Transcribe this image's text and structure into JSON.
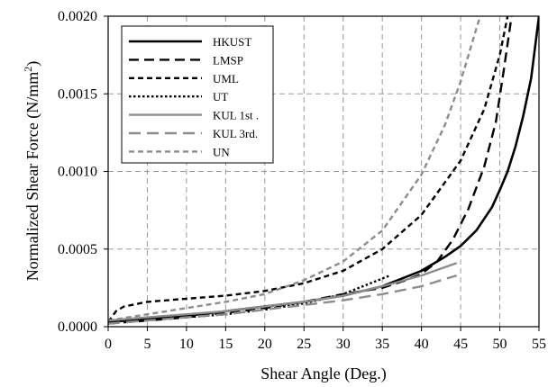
{
  "chart_data": {
    "type": "line",
    "xlabel": "Shear Angle (Deg.)",
    "ylabel_main": "Normalized Shear Force (N/mm",
    "ylabel_sup": "2",
    "ylabel_tail": ")",
    "xlim": [
      0,
      55
    ],
    "ylim": [
      0,
      0.002
    ],
    "x_ticks": [
      "0",
      "5",
      "10",
      "15",
      "20",
      "25",
      "30",
      "35",
      "40",
      "45",
      "50",
      "55"
    ],
    "y_ticks": [
      "0.0000",
      "0.0005",
      "0.0010",
      "0.0015",
      "0.0020"
    ],
    "grid": true,
    "legend_position": "top-left",
    "series": [
      {
        "name": "HKUST",
        "color": "#000000",
        "dash": "",
        "width": 2.6,
        "x": [
          0,
          5,
          10,
          15,
          20,
          25,
          30,
          35,
          40,
          43,
          45,
          47,
          49,
          50,
          51,
          52,
          53,
          54,
          55
        ],
        "y": [
          3e-05,
          5e-05,
          7e-05,
          0.0001,
          0.00013,
          0.00016,
          0.0002,
          0.00026,
          0.00036,
          0.00045,
          0.00052,
          0.00062,
          0.00077,
          0.00088,
          0.001,
          0.00116,
          0.00136,
          0.0016,
          0.002
        ]
      },
      {
        "name": "LMSP",
        "color": "#000000",
        "dash": "11 6",
        "width": 2.4,
        "x": [
          0,
          5,
          10,
          15,
          20,
          25,
          30,
          35,
          38,
          40,
          42,
          44,
          46,
          48,
          49.5,
          50.5,
          51.5
        ],
        "y": [
          2e-05,
          4e-05,
          6e-05,
          9e-05,
          0.00012,
          0.00016,
          0.00021,
          0.00025,
          0.0003,
          0.00034,
          0.00042,
          0.00056,
          0.00076,
          0.00103,
          0.00132,
          0.00165,
          0.002
        ]
      },
      {
        "name": "UML",
        "color": "#000000",
        "dash": "6 4",
        "width": 2.4,
        "x": [
          0,
          1,
          2,
          5,
          10,
          15,
          20,
          25,
          30,
          35,
          40,
          45,
          48,
          50,
          51
        ],
        "y": [
          3e-05,
          0.0001,
          0.00013,
          0.00016,
          0.00018,
          0.0002,
          0.00023,
          0.00028,
          0.00036,
          0.0005,
          0.00072,
          0.00107,
          0.0014,
          0.00175,
          0.002
        ]
      },
      {
        "name": "UT",
        "color": "#000000",
        "dash": "2.5 2.5",
        "width": 2.4,
        "x": [
          0,
          5,
          10,
          15,
          20,
          25,
          30,
          32,
          34,
          35,
          36
        ],
        "y": [
          3e-05,
          5e-05,
          6e-05,
          8e-05,
          0.00011,
          0.00015,
          0.00021,
          0.00025,
          0.00029,
          0.00031,
          0.00033
        ]
      },
      {
        "name": "KUL 1st .",
        "color": "#8c8c8c",
        "dash": "",
        "width": 2.4,
        "x": [
          0,
          5,
          10,
          15,
          20,
          25,
          30,
          35,
          40,
          44.5
        ],
        "y": [
          4e-05,
          6e-05,
          8e-05,
          0.0001,
          0.00013,
          0.00016,
          0.0002,
          0.00026,
          0.00033,
          0.00041
        ]
      },
      {
        "name": "KUL 3rd.",
        "color": "#8c8c8c",
        "dash": "13 7",
        "width": 2.4,
        "x": [
          0,
          5,
          10,
          15,
          20,
          25,
          30,
          35,
          40,
          44.5
        ],
        "y": [
          2e-05,
          4e-05,
          6e-05,
          8e-05,
          0.00011,
          0.00014,
          0.00017,
          0.00021,
          0.00026,
          0.00033
        ]
      },
      {
        "name": "UN",
        "color": "#8c8c8c",
        "dash": "6 4",
        "width": 2.4,
        "x": [
          0,
          5,
          10,
          15,
          20,
          25,
          30,
          35,
          40,
          43,
          45,
          46,
          47,
          47.5
        ],
        "y": [
          4e-05,
          8e-05,
          0.00012,
          0.00016,
          0.00021,
          0.0003,
          0.00042,
          0.00062,
          0.00098,
          0.0013,
          0.00158,
          0.00175,
          0.00192,
          0.002
        ]
      }
    ]
  }
}
